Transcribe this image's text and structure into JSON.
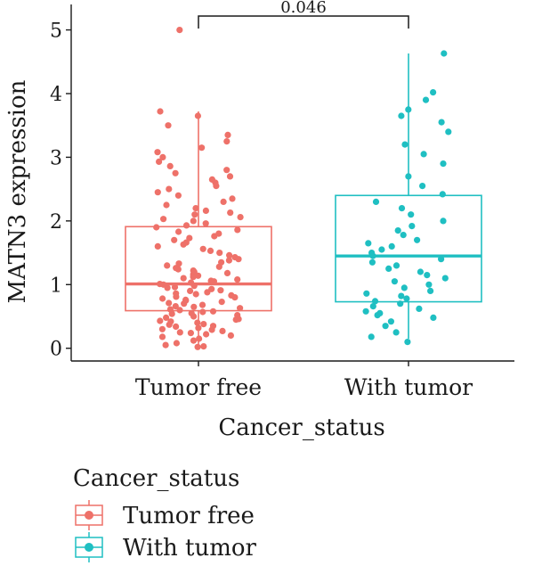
{
  "chart_data": {
    "type": "boxplot",
    "xlabel": "Cancer_status",
    "ylabel": "MATN3 expression",
    "ylim": [
      -0.2,
      5.4
    ],
    "y_ticks": [
      0,
      1,
      2,
      3,
      4,
      5
    ],
    "categories": [
      "Tumor free",
      "With tumor"
    ],
    "grid": false,
    "colors": {
      "Tumor free": "#ee7169",
      "With tumor": "#1fbfc2"
    },
    "series": [
      {
        "name": "Tumor free",
        "box": {
          "whisker_low": 0.0,
          "q1": 0.59,
          "median": 1.01,
          "q3": 1.91,
          "whisker_high": 3.72
        },
        "points": [
          0.02,
          0.03,
          0.05,
          0.08,
          0.12,
          0.15,
          0.18,
          0.2,
          0.22,
          0.24,
          0.25,
          0.27,
          0.29,
          0.3,
          0.32,
          0.34,
          0.35,
          0.37,
          0.38,
          0.4,
          0.42,
          0.43,
          0.45,
          0.46,
          0.48,
          0.5,
          0.52,
          0.54,
          0.55,
          0.57,
          0.58,
          0.6,
          0.61,
          0.63,
          0.65,
          0.66,
          0.68,
          0.7,
          0.71,
          0.73,
          0.75,
          0.76,
          0.78,
          0.8,
          0.81,
          0.83,
          0.85,
          0.86,
          0.88,
          0.9,
          0.91,
          0.93,
          0.95,
          0.96,
          0.98,
          1.0,
          1.01,
          1.03,
          1.05,
          1.06,
          1.08,
          1.1,
          1.12,
          1.14,
          1.16,
          1.18,
          1.2,
          1.22,
          1.24,
          1.26,
          1.28,
          1.3,
          1.33,
          1.35,
          1.38,
          1.4,
          1.43,
          1.46,
          1.5,
          1.53,
          1.56,
          1.6,
          1.63,
          1.66,
          1.7,
          1.73,
          1.76,
          1.8,
          1.83,
          1.86,
          1.9,
          1.93,
          1.96,
          2.0,
          2.03,
          2.06,
          2.1,
          2.13,
          2.16,
          2.2,
          2.25,
          2.3,
          2.35,
          2.4,
          2.45,
          2.5,
          2.55,
          2.6,
          2.65,
          2.7,
          2.75,
          2.8,
          2.86,
          2.93,
          3.0,
          3.08,
          3.15,
          3.25,
          3.35,
          3.5,
          3.65,
          3.72,
          5.0
        ]
      },
      {
        "name": "With tumor",
        "box": {
          "whisker_low": 0.15,
          "q1": 0.73,
          "median": 1.45,
          "q3": 2.4,
          "whisker_high": 4.63
        },
        "points": [
          0.1,
          0.18,
          0.25,
          0.35,
          0.42,
          0.48,
          0.52,
          0.55,
          0.58,
          0.62,
          0.66,
          0.7,
          0.74,
          0.78,
          0.82,
          0.86,
          0.9,
          0.95,
          1.0,
          1.05,
          1.1,
          1.15,
          1.2,
          1.25,
          1.3,
          1.35,
          1.4,
          1.45,
          1.5,
          1.55,
          1.6,
          1.65,
          1.7,
          1.78,
          1.85,
          1.92,
          2.0,
          2.1,
          2.2,
          2.3,
          2.42,
          2.55,
          2.7,
          2.9,
          3.05,
          3.2,
          3.4,
          3.55,
          3.65,
          3.75,
          3.9,
          4.02,
          4.63
        ]
      }
    ],
    "annotation": {
      "text": "0.046",
      "between": [
        "Tumor free",
        "With tumor"
      ]
    },
    "legend": {
      "title": "Cancer_status",
      "position": "bottom-left",
      "items": [
        "Tumor free",
        "With tumor"
      ]
    }
  }
}
